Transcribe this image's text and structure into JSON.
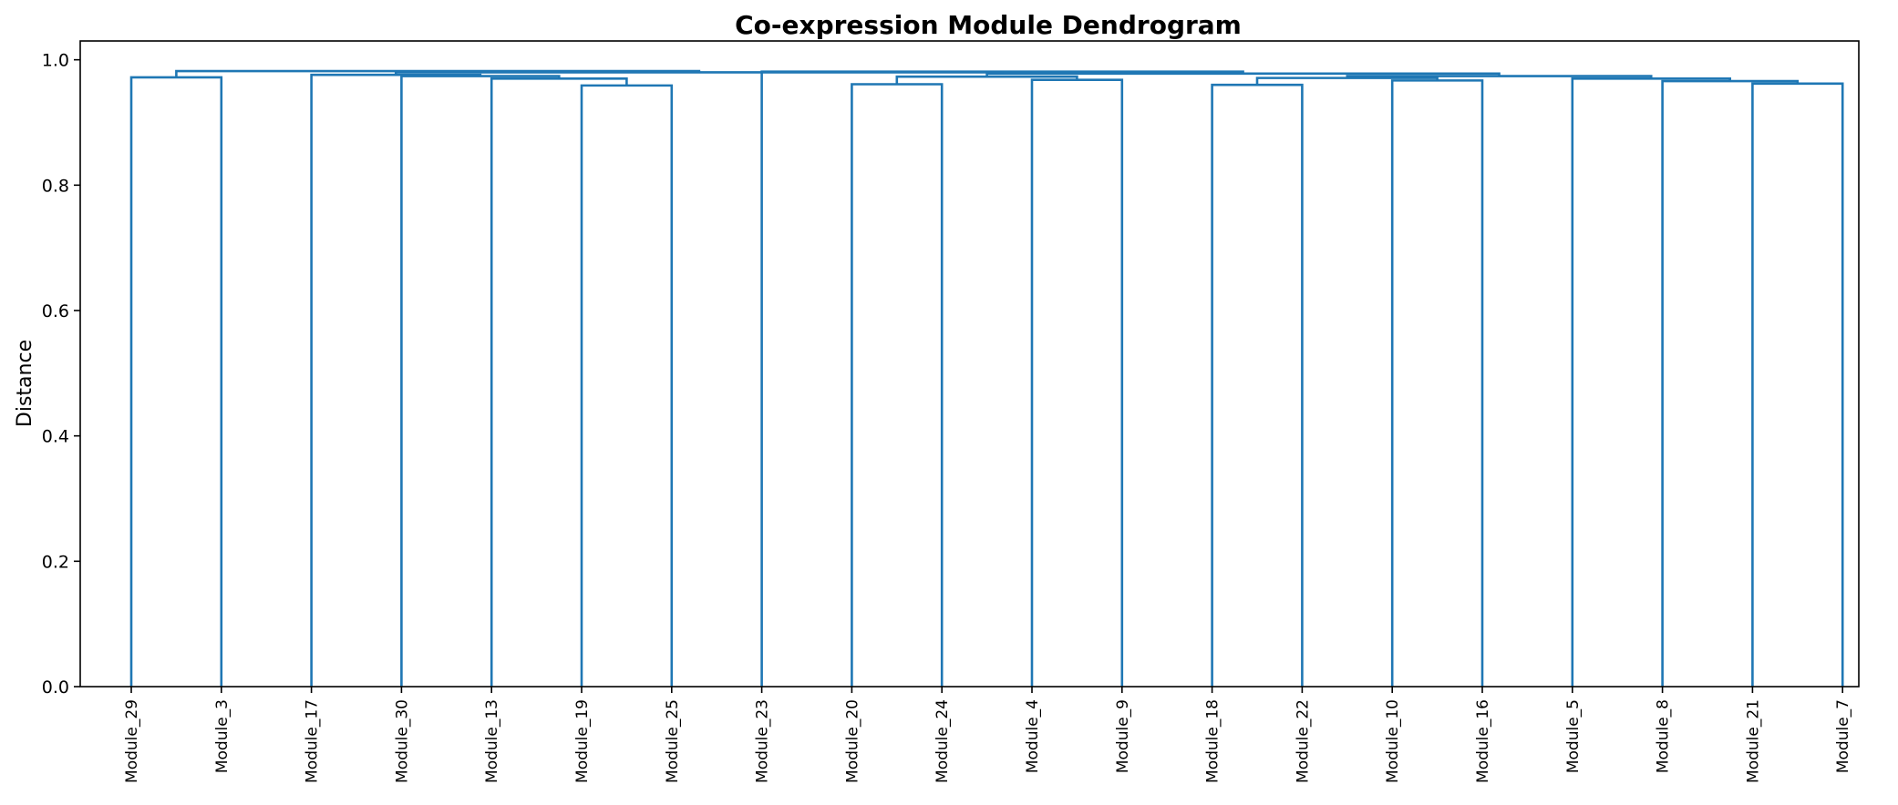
{
  "chart_data": {
    "type": "dendrogram",
    "title": "Co-expression Module Dendrogram",
    "xlabel": "",
    "ylabel": "Distance",
    "ylim": [
      0,
      1.03
    ],
    "yticks": [
      "0.0",
      "0.2",
      "0.4",
      "0.6",
      "0.8",
      "1.0"
    ],
    "ytick_values": [
      0,
      0.2,
      0.4,
      0.6,
      0.8,
      1.0
    ],
    "grid": false,
    "line_color": "#1f77b4",
    "leaves": [
      "Module_29",
      "Module_3",
      "Module_17",
      "Module_30",
      "Module_13",
      "Module_19",
      "Module_25",
      "Module_23",
      "Module_20",
      "Module_24",
      "Module_4",
      "Module_9",
      "Module_18",
      "Module_22",
      "Module_10",
      "Module_16",
      "Module_5",
      "Module_8",
      "Module_21",
      "Module_7"
    ],
    "merges": [
      {
        "left": "L0",
        "right": "L1",
        "height": 0.972,
        "id": "A"
      },
      {
        "left": "L5",
        "right": "L6",
        "height": 0.959,
        "id": "B"
      },
      {
        "left": "L4",
        "right": "B",
        "height": 0.97,
        "id": "C"
      },
      {
        "left": "L3",
        "right": "C",
        "height": 0.974,
        "id": "D"
      },
      {
        "left": "L2",
        "right": "D",
        "height": 0.976,
        "id": "E"
      },
      {
        "left": "L8",
        "right": "L9",
        "height": 0.961,
        "id": "F"
      },
      {
        "left": "L10",
        "right": "L11",
        "height": 0.968,
        "id": "G"
      },
      {
        "left": "F",
        "right": "G",
        "height": 0.973,
        "id": "H"
      },
      {
        "left": "L12",
        "right": "L13",
        "height": 0.96,
        "id": "I"
      },
      {
        "left": "L14",
        "right": "L15",
        "height": 0.967,
        "id": "J"
      },
      {
        "left": "I",
        "right": "J",
        "height": 0.971,
        "id": "K"
      },
      {
        "left": "L18",
        "right": "L19",
        "height": 0.962,
        "id": "L"
      },
      {
        "left": "L17",
        "right": "L",
        "height": 0.966,
        "id": "M"
      },
      {
        "left": "L16",
        "right": "M",
        "height": 0.97,
        "id": "N"
      },
      {
        "left": "K",
        "right": "N",
        "height": 0.974,
        "id": "O"
      },
      {
        "left": "H",
        "right": "O",
        "height": 0.978,
        "id": "P"
      },
      {
        "left": "L7",
        "right": "P",
        "height": 0.981,
        "id": "Q"
      },
      {
        "left": "E",
        "right": "Q",
        "height": 0.98,
        "id": "R"
      },
      {
        "left": "A",
        "right": "R",
        "height": 0.982,
        "id": "S"
      }
    ]
  }
}
